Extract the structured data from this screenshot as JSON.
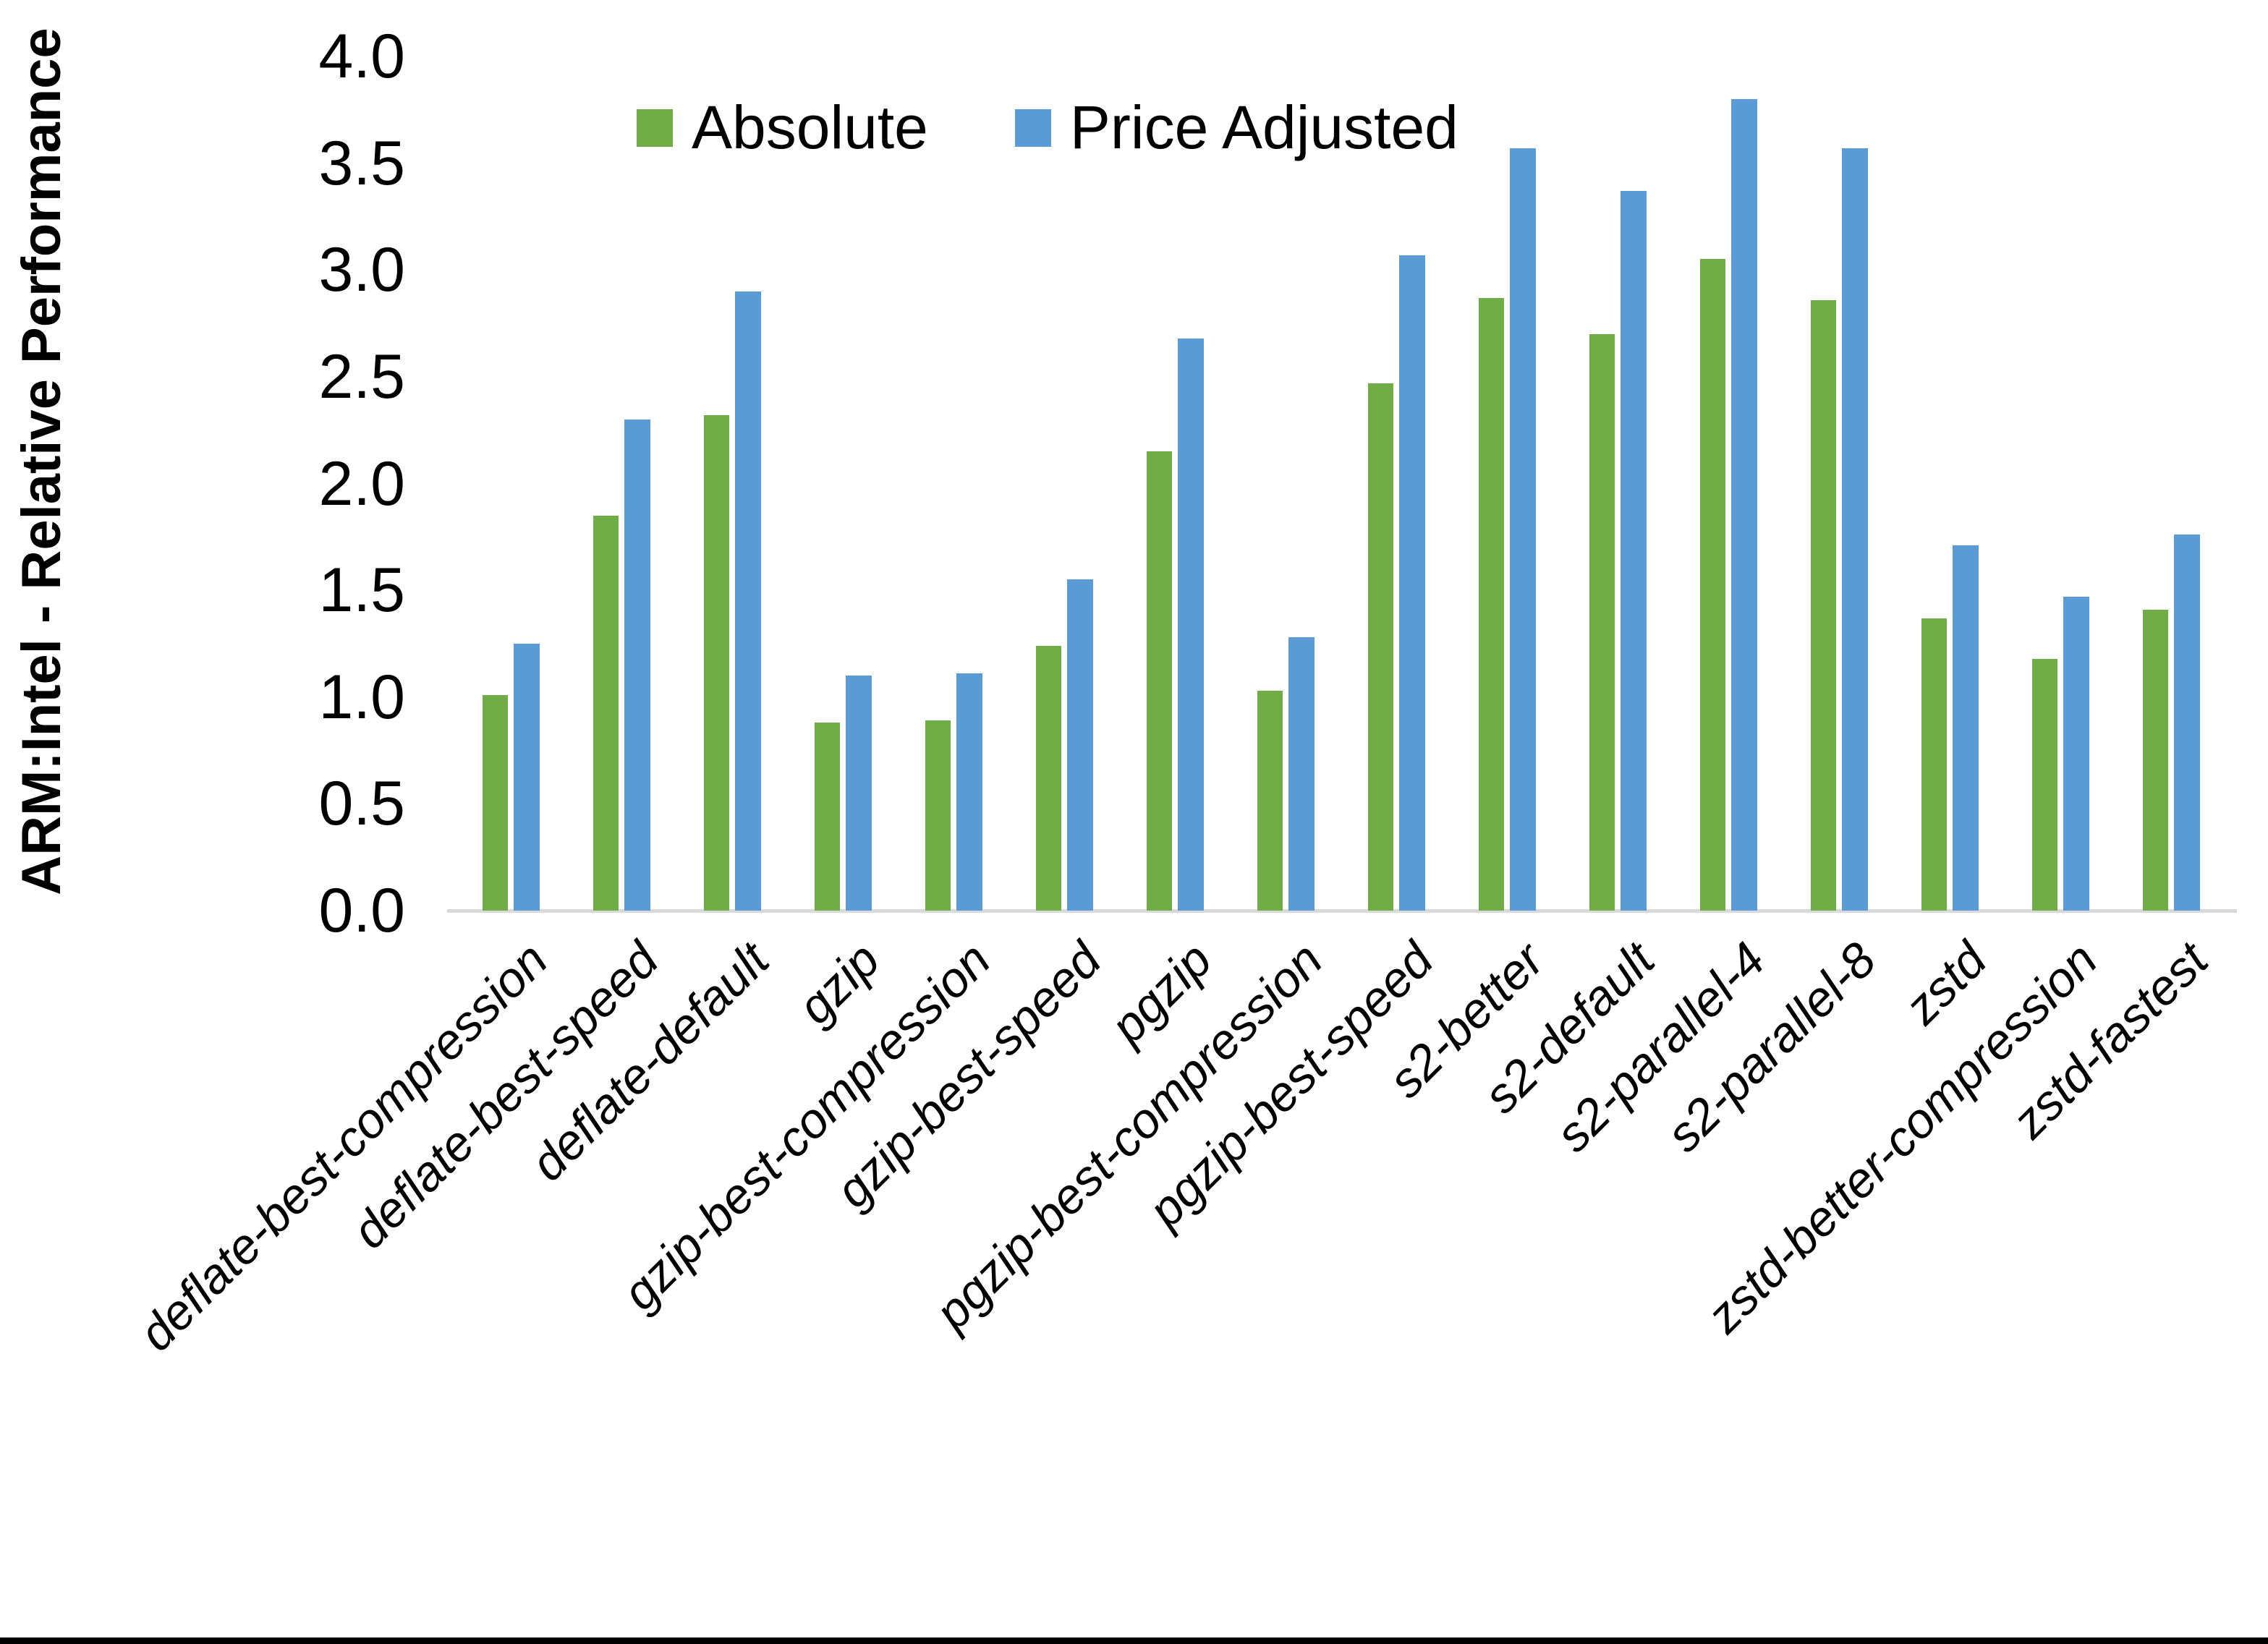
{
  "chart_data": {
    "type": "bar",
    "title": "",
    "ylabel": "ARM:Intel - Relative Performance",
    "xlabel": "",
    "ylim": [
      0.0,
      4.0
    ],
    "ytick_step": 0.5,
    "yticks": [
      "0.0",
      "0.5",
      "1.0",
      "1.5",
      "2.0",
      "2.5",
      "3.0",
      "3.5",
      "4.0"
    ],
    "grid": false,
    "legend_position": "top-center",
    "background_color": "#FFFFFF",
    "axis_line_color": "#D9D9D9",
    "categories": [
      "deflate-best-compression",
      "deflate-best-speed",
      "deflate-default",
      "gzip",
      "gzip-best-compression",
      "gzip-best-speed",
      "pgzip",
      "pgzip-best-compression",
      "pgzip-best-speed",
      "s2-better",
      "s2-default",
      "s2-parallel-4",
      "s2-parallel-8",
      "zstd",
      "zstd-better-compression",
      "zstd-fastest"
    ],
    "series": [
      {
        "name": "Absolute",
        "color": "#70AD47",
        "values": [
          1.01,
          1.85,
          2.32,
          0.88,
          0.89,
          1.24,
          2.15,
          1.03,
          2.47,
          2.87,
          2.7,
          3.05,
          2.86,
          1.37,
          1.18,
          1.41
        ]
      },
      {
        "name": "Price Adjusted",
        "color": "#5B9BD5",
        "values": [
          1.25,
          2.3,
          2.9,
          1.1,
          1.11,
          1.55,
          2.68,
          1.28,
          3.07,
          3.57,
          3.37,
          3.8,
          3.57,
          1.71,
          1.47,
          1.76
        ]
      }
    ]
  }
}
